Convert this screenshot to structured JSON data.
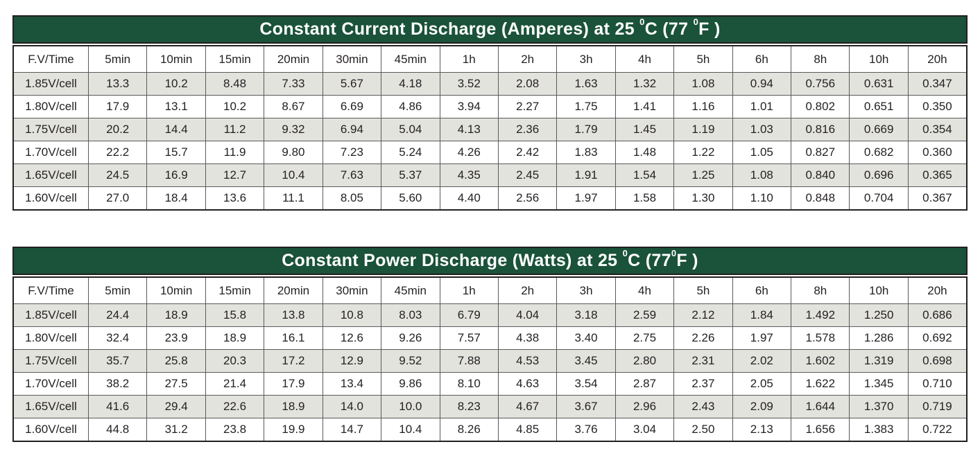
{
  "colors": {
    "title_background": "#1a523a",
    "title_text": "#ffffff",
    "stripe_row": "#e3e3de",
    "grid_border": "#58595b",
    "outer_border": "#231f20",
    "cell_text": "#231f20"
  },
  "tables": [
    {
      "title_plain": "Constant Current Discharge (Amperes) at 25 0C (77 0F )",
      "title_segments": [
        {
          "t": "Constant Current Discharge (Amperes) at 25 ",
          "sup": false
        },
        {
          "t": "0",
          "sup": true
        },
        {
          "t": "C (77 ",
          "sup": false
        },
        {
          "t": "0",
          "sup": true
        },
        {
          "t": "F )",
          "sup": false
        }
      ],
      "columns": [
        "F.V/Time",
        "5min",
        "10min",
        "15min",
        "20min",
        "30min",
        "45min",
        "1h",
        "2h",
        "3h",
        "4h",
        "5h",
        "6h",
        "8h",
        "10h",
        "20h"
      ],
      "rows": [
        {
          "label": "1.85V/cell",
          "values": [
            "13.3",
            "10.2",
            "8.48",
            "7.33",
            "5.67",
            "4.18",
            "3.52",
            "2.08",
            "1.63",
            "1.32",
            "1.08",
            "0.94",
            "0.756",
            "0.631",
            "0.347"
          ]
        },
        {
          "label": "1.80V/cell",
          "values": [
            "17.9",
            "13.1",
            "10.2",
            "8.67",
            "6.69",
            "4.86",
            "3.94",
            "2.27",
            "1.75",
            "1.41",
            "1.16",
            "1.01",
            "0.802",
            "0.651",
            "0.350"
          ]
        },
        {
          "label": "1.75V/cell",
          "values": [
            "20.2",
            "14.4",
            "11.2",
            "9.32",
            "6.94",
            "5.04",
            "4.13",
            "2.36",
            "1.79",
            "1.45",
            "1.19",
            "1.03",
            "0.816",
            "0.669",
            "0.354"
          ]
        },
        {
          "label": "1.70V/cell",
          "values": [
            "22.2",
            "15.7",
            "11.9",
            "9.80",
            "7.23",
            "5.24",
            "4.26",
            "2.42",
            "1.83",
            "1.48",
            "1.22",
            "1.05",
            "0.827",
            "0.682",
            "0.360"
          ]
        },
        {
          "label": "1.65V/cell",
          "values": [
            "24.5",
            "16.9",
            "12.7",
            "10.4",
            "7.63",
            "5.37",
            "4.35",
            "2.45",
            "1.91",
            "1.54",
            "1.25",
            "1.08",
            "0.840",
            "0.696",
            "0.365"
          ]
        },
        {
          "label": "1.60V/cell",
          "values": [
            "27.0",
            "18.4",
            "13.6",
            "11.1",
            "8.05",
            "5.60",
            "4.40",
            "2.56",
            "1.97",
            "1.58",
            "1.30",
            "1.10",
            "0.848",
            "0.704",
            "0.367"
          ]
        }
      ]
    },
    {
      "title_plain": "Constant Power Discharge (Watts) at 25 0C (770F )",
      "title_segments": [
        {
          "t": "Constant Power Discharge (Watts) at 25 ",
          "sup": false
        },
        {
          "t": "0",
          "sup": true
        },
        {
          "t": "C (77",
          "sup": false
        },
        {
          "t": "0",
          "sup": true
        },
        {
          "t": "F )",
          "sup": false
        }
      ],
      "columns": [
        "F.V/Time",
        "5min",
        "10min",
        "15min",
        "20min",
        "30min",
        "45min",
        "1h",
        "2h",
        "3h",
        "4h",
        "5h",
        "6h",
        "8h",
        "10h",
        "20h"
      ],
      "rows": [
        {
          "label": "1.85V/cell",
          "values": [
            "24.4",
            "18.9",
            "15.8",
            "13.8",
            "10.8",
            "8.03",
            "6.79",
            "4.04",
            "3.18",
            "2.59",
            "2.12",
            "1.84",
            "1.492",
            "1.250",
            "0.686"
          ]
        },
        {
          "label": "1.80V/cell",
          "values": [
            "32.4",
            "23.9",
            "18.9",
            "16.1",
            "12.6",
            "9.26",
            "7.57",
            "4.38",
            "3.40",
            "2.75",
            "2.26",
            "1.97",
            "1.578",
            "1.286",
            "0.692"
          ]
        },
        {
          "label": "1.75V/cell",
          "values": [
            "35.7",
            "25.8",
            "20.3",
            "17.2",
            "12.9",
            "9.52",
            "7.88",
            "4.53",
            "3.45",
            "2.80",
            "2.31",
            "2.02",
            "1.602",
            "1.319",
            "0.698"
          ]
        },
        {
          "label": "1.70V/cell",
          "values": [
            "38.2",
            "27.5",
            "21.4",
            "17.9",
            "13.4",
            "9.86",
            "8.10",
            "4.63",
            "3.54",
            "2.87",
            "2.37",
            "2.05",
            "1.622",
            "1.345",
            "0.710"
          ]
        },
        {
          "label": "1.65V/cell",
          "values": [
            "41.6",
            "29.4",
            "22.6",
            "18.9",
            "14.0",
            "10.0",
            "8.23",
            "4.67",
            "3.67",
            "2.96",
            "2.43",
            "2.09",
            "1.644",
            "1.370",
            "0.719"
          ]
        },
        {
          "label": "1.60V/cell",
          "values": [
            "44.8",
            "31.2",
            "23.8",
            "19.9",
            "14.7",
            "10.4",
            "8.26",
            "4.85",
            "3.76",
            "3.04",
            "2.50",
            "2.13",
            "1.656",
            "1.383",
            "0.722"
          ]
        }
      ]
    }
  ]
}
